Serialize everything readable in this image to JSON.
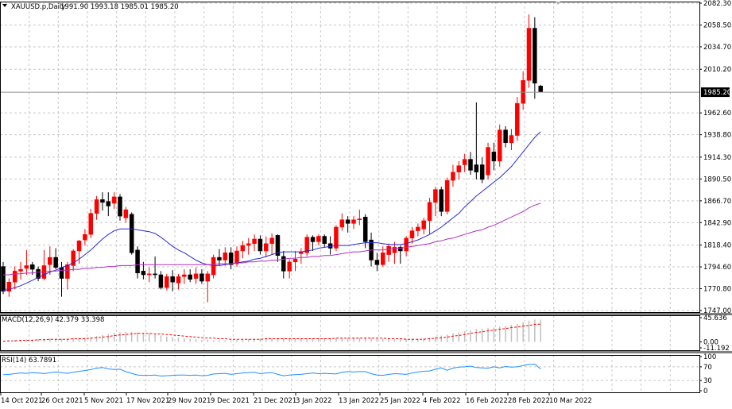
{
  "chart_data": {
    "type": "candlestick",
    "symbol_header": "XAUUSD.p,Daily",
    "ohlc_header": "1991.90 1993.18 1985.01 1985.20",
    "main": {
      "ylim": [
        1747.0,
        2082.3
      ],
      "y_ticks": [
        "2082.30",
        "2058.50",
        "2034.70",
        "2010.20",
        "1962.60",
        "1938.80",
        "1914.30",
        "1890.50",
        "1866.70",
        "1842.90",
        "1818.40",
        "1794.60",
        "1770.80",
        "1747.00"
      ],
      "current_price": "1985.20",
      "candles": [
        {
          "o": 1795,
          "h": 1800,
          "l": 1765,
          "c": 1768
        },
        {
          "o": 1768,
          "h": 1782,
          "l": 1762,
          "c": 1778
        },
        {
          "o": 1778,
          "h": 1795,
          "l": 1770,
          "c": 1790
        },
        {
          "o": 1790,
          "h": 1800,
          "l": 1781,
          "c": 1792
        },
        {
          "o": 1793,
          "h": 1813,
          "l": 1786,
          "c": 1796
        },
        {
          "o": 1797,
          "h": 1800,
          "l": 1786,
          "c": 1792
        },
        {
          "o": 1792,
          "h": 1795,
          "l": 1779,
          "c": 1782
        },
        {
          "o": 1782,
          "h": 1813,
          "l": 1780,
          "c": 1796
        },
        {
          "o": 1797,
          "h": 1817,
          "l": 1786,
          "c": 1805
        },
        {
          "o": 1805,
          "h": 1815,
          "l": 1792,
          "c": 1794
        },
        {
          "o": 1794,
          "h": 1800,
          "l": 1762,
          "c": 1782
        },
        {
          "o": 1782,
          "h": 1800,
          "l": 1770,
          "c": 1797
        },
        {
          "o": 1796,
          "h": 1814,
          "l": 1790,
          "c": 1812
        },
        {
          "o": 1812,
          "h": 1824,
          "l": 1798,
          "c": 1823
        },
        {
          "o": 1824,
          "h": 1836,
          "l": 1818,
          "c": 1830
        },
        {
          "o": 1830,
          "h": 1858,
          "l": 1826,
          "c": 1853
        },
        {
          "o": 1853,
          "h": 1872,
          "l": 1846,
          "c": 1868
        },
        {
          "o": 1868,
          "h": 1876,
          "l": 1856,
          "c": 1865
        },
        {
          "o": 1866,
          "h": 1876,
          "l": 1850,
          "c": 1861
        },
        {
          "o": 1864,
          "h": 1876,
          "l": 1858,
          "c": 1871
        },
        {
          "o": 1871,
          "h": 1874,
          "l": 1845,
          "c": 1850
        },
        {
          "o": 1848,
          "h": 1860,
          "l": 1843,
          "c": 1857
        },
        {
          "o": 1852,
          "h": 1854,
          "l": 1808,
          "c": 1810
        },
        {
          "o": 1813,
          "h": 1817,
          "l": 1782,
          "c": 1788
        },
        {
          "o": 1790,
          "h": 1800,
          "l": 1781,
          "c": 1786
        },
        {
          "o": 1786,
          "h": 1794,
          "l": 1778,
          "c": 1787
        },
        {
          "o": 1787,
          "h": 1806,
          "l": 1782,
          "c": 1786
        },
        {
          "o": 1786,
          "h": 1790,
          "l": 1770,
          "c": 1772
        },
        {
          "o": 1772,
          "h": 1787,
          "l": 1769,
          "c": 1784
        },
        {
          "o": 1784,
          "h": 1791,
          "l": 1768,
          "c": 1778
        },
        {
          "o": 1777,
          "h": 1787,
          "l": 1770,
          "c": 1784
        },
        {
          "o": 1784,
          "h": 1792,
          "l": 1776,
          "c": 1786
        },
        {
          "o": 1786,
          "h": 1792,
          "l": 1778,
          "c": 1781
        },
        {
          "o": 1782,
          "h": 1794,
          "l": 1776,
          "c": 1787
        },
        {
          "o": 1787,
          "h": 1792,
          "l": 1776,
          "c": 1779
        },
        {
          "o": 1779,
          "h": 1790,
          "l": 1756,
          "c": 1787
        },
        {
          "o": 1786,
          "h": 1808,
          "l": 1782,
          "c": 1805
        },
        {
          "o": 1805,
          "h": 1814,
          "l": 1796,
          "c": 1802
        },
        {
          "o": 1802,
          "h": 1816,
          "l": 1796,
          "c": 1810
        },
        {
          "o": 1810,
          "h": 1816,
          "l": 1792,
          "c": 1797
        },
        {
          "o": 1798,
          "h": 1817,
          "l": 1795,
          "c": 1812
        },
        {
          "o": 1812,
          "h": 1823,
          "l": 1804,
          "c": 1818
        },
        {
          "o": 1818,
          "h": 1826,
          "l": 1808,
          "c": 1820
        },
        {
          "o": 1820,
          "h": 1830,
          "l": 1812,
          "c": 1825
        },
        {
          "o": 1825,
          "h": 1829,
          "l": 1808,
          "c": 1812
        },
        {
          "o": 1812,
          "h": 1828,
          "l": 1805,
          "c": 1820
        },
        {
          "o": 1820,
          "h": 1831,
          "l": 1808,
          "c": 1826
        },
        {
          "o": 1829,
          "h": 1830,
          "l": 1800,
          "c": 1807
        },
        {
          "o": 1806,
          "h": 1812,
          "l": 1782,
          "c": 1790
        },
        {
          "o": 1790,
          "h": 1803,
          "l": 1782,
          "c": 1800
        },
        {
          "o": 1800,
          "h": 1812,
          "l": 1790,
          "c": 1803
        },
        {
          "o": 1809,
          "h": 1815,
          "l": 1798,
          "c": 1811
        },
        {
          "o": 1810,
          "h": 1830,
          "l": 1806,
          "c": 1827
        },
        {
          "o": 1827,
          "h": 1829,
          "l": 1812,
          "c": 1822
        },
        {
          "o": 1822,
          "h": 1830,
          "l": 1818,
          "c": 1828
        },
        {
          "o": 1828,
          "h": 1830,
          "l": 1816,
          "c": 1820
        },
        {
          "o": 1820,
          "h": 1828,
          "l": 1808,
          "c": 1815
        },
        {
          "o": 1815,
          "h": 1840,
          "l": 1812,
          "c": 1838
        },
        {
          "o": 1838,
          "h": 1853,
          "l": 1834,
          "c": 1846
        },
        {
          "o": 1846,
          "h": 1850,
          "l": 1832,
          "c": 1842
        },
        {
          "o": 1842,
          "h": 1850,
          "l": 1836,
          "c": 1846
        },
        {
          "o": 1846,
          "h": 1857,
          "l": 1840,
          "c": 1847
        },
        {
          "o": 1849,
          "h": 1852,
          "l": 1815,
          "c": 1822
        },
        {
          "o": 1824,
          "h": 1832,
          "l": 1795,
          "c": 1802
        },
        {
          "o": 1802,
          "h": 1810,
          "l": 1790,
          "c": 1797
        },
        {
          "o": 1797,
          "h": 1817,
          "l": 1795,
          "c": 1810
        },
        {
          "o": 1808,
          "h": 1820,
          "l": 1800,
          "c": 1817
        },
        {
          "o": 1810,
          "h": 1822,
          "l": 1798,
          "c": 1816
        },
        {
          "o": 1816,
          "h": 1818,
          "l": 1798,
          "c": 1812
        },
        {
          "o": 1812,
          "h": 1828,
          "l": 1806,
          "c": 1826
        },
        {
          "o": 1826,
          "h": 1838,
          "l": 1820,
          "c": 1834
        },
        {
          "o": 1834,
          "h": 1842,
          "l": 1828,
          "c": 1838
        },
        {
          "o": 1836,
          "h": 1848,
          "l": 1830,
          "c": 1845
        },
        {
          "o": 1845,
          "h": 1870,
          "l": 1830,
          "c": 1865
        },
        {
          "o": 1865,
          "h": 1882,
          "l": 1850,
          "c": 1879
        },
        {
          "o": 1879,
          "h": 1882,
          "l": 1850,
          "c": 1855
        },
        {
          "o": 1855,
          "h": 1892,
          "l": 1852,
          "c": 1889
        },
        {
          "o": 1889,
          "h": 1906,
          "l": 1882,
          "c": 1898
        },
        {
          "o": 1898,
          "h": 1910,
          "l": 1890,
          "c": 1905
        },
        {
          "o": 1906,
          "h": 1918,
          "l": 1898,
          "c": 1912
        },
        {
          "o": 1912,
          "h": 1920,
          "l": 1895,
          "c": 1900
        },
        {
          "o": 1906,
          "h": 1974,
          "l": 1890,
          "c": 1898
        },
        {
          "o": 1906,
          "h": 1914,
          "l": 1886,
          "c": 1890
        },
        {
          "o": 1895,
          "h": 1930,
          "l": 1890,
          "c": 1925
        },
        {
          "o": 1920,
          "h": 1930,
          "l": 1900,
          "c": 1910
        },
        {
          "o": 1910,
          "h": 1950,
          "l": 1904,
          "c": 1944
        },
        {
          "o": 1944,
          "h": 1948,
          "l": 1925,
          "c": 1930
        },
        {
          "o": 1930,
          "h": 1945,
          "l": 1922,
          "c": 1938
        },
        {
          "o": 1938,
          "h": 1980,
          "l": 1932,
          "c": 1973
        },
        {
          "o": 1973,
          "h": 2008,
          "l": 1966,
          "c": 1998
        },
        {
          "o": 1998,
          "h": 2070,
          "l": 1990,
          "c": 2055
        },
        {
          "o": 2055,
          "h": 2067,
          "l": 1978,
          "c": 1995
        },
        {
          "o": 1991.9,
          "h": 1993.18,
          "l": 1985.01,
          "c": 1985.2
        }
      ],
      "ma_fast": [
        1769,
        1770,
        1772,
        1774,
        1777,
        1780,
        1783,
        1786,
        1789,
        1791,
        1794,
        1796,
        1799,
        1803,
        1808,
        1813,
        1819,
        1825,
        1830,
        1834,
        1836,
        1836,
        1836,
        1835,
        1834,
        1833,
        1831,
        1827,
        1822,
        1817,
        1813,
        1810,
        1806,
        1802,
        1799,
        1797,
        1796,
        1796,
        1797,
        1798,
        1799,
        1800,
        1801,
        1803,
        1804,
        1806,
        1808,
        1810,
        1811,
        1811,
        1811,
        1811,
        1812,
        1813,
        1815,
        1816,
        1817,
        1818,
        1818,
        1818,
        1819,
        1820,
        1821,
        1821,
        1821,
        1820,
        1819,
        1819,
        1819,
        1820,
        1822,
        1824,
        1827,
        1830,
        1834,
        1838,
        1843,
        1848,
        1853,
        1860,
        1866,
        1872,
        1877,
        1882,
        1887,
        1892,
        1898,
        1904,
        1912,
        1920,
        1928,
        1936,
        1942
      ],
      "ma_slow": [
        1786,
        1786,
        1787,
        1787,
        1788,
        1788,
        1789,
        1789,
        1790,
        1790,
        1791,
        1791,
        1792,
        1792,
        1793,
        1793,
        1794,
        1794,
        1795,
        1795,
        1796,
        1796,
        1796,
        1797,
        1797,
        1797,
        1797,
        1797,
        1797,
        1797,
        1797,
        1797,
        1797,
        1797,
        1797,
        1797,
        1797,
        1798,
        1798,
        1798,
        1799,
        1799,
        1800,
        1800,
        1801,
        1801,
        1802,
        1802,
        1803,
        1804,
        1804,
        1805,
        1805,
        1806,
        1806,
        1807,
        1807,
        1808,
        1809,
        1810,
        1811,
        1811,
        1812,
        1813,
        1813,
        1813,
        1814,
        1815,
        1815,
        1816,
        1817,
        1818,
        1819,
        1820,
        1822,
        1823,
        1825,
        1826,
        1828,
        1830,
        1832,
        1834,
        1835,
        1838,
        1840,
        1843,
        1846,
        1849,
        1852,
        1855,
        1859,
        1862,
        1864
      ]
    },
    "macd": {
      "label": "MACD(12,26,9) 42.379 33.398",
      "y_ticks": [
        "45.636",
        "0.00",
        "-11.192"
      ],
      "ylim": [
        -11.192,
        45.636
      ],
      "histogram": [
        2,
        3,
        4,
        4,
        5,
        5,
        5,
        6,
        6,
        6,
        6,
        6,
        7,
        7,
        8,
        9,
        11,
        13,
        15,
        17,
        18,
        19,
        19,
        18,
        17,
        16,
        14,
        12,
        10,
        9,
        8,
        7,
        6,
        5,
        4,
        4,
        3,
        3,
        3,
        3,
        4,
        4,
        5,
        5,
        6,
        6,
        6,
        7,
        7,
        6,
        6,
        6,
        6,
        6,
        7,
        7,
        7,
        7,
        8,
        8,
        8,
        8,
        8,
        8,
        7,
        6,
        5,
        5,
        5,
        5,
        6,
        6,
        7,
        8,
        10,
        12,
        14,
        16,
        18,
        20,
        22,
        24,
        25,
        26,
        27,
        29,
        30,
        32,
        34,
        37,
        40,
        42,
        42
      ],
      "signal": [
        1,
        2,
        2,
        3,
        3,
        3,
        4,
        4,
        5,
        5,
        5,
        5,
        6,
        6,
        6,
        7,
        8,
        9,
        10,
        12,
        13,
        14,
        15,
        16,
        16,
        16,
        15,
        15,
        14,
        13,
        12,
        11,
        10,
        9,
        8,
        7,
        7,
        6,
        6,
        5,
        5,
        5,
        5,
        5,
        5,
        6,
        6,
        6,
        6,
        6,
        6,
        6,
        6,
        6,
        6,
        6,
        6,
        7,
        7,
        7,
        7,
        7,
        7,
        7,
        7,
        7,
        6,
        6,
        6,
        5,
        5,
        5,
        5,
        6,
        7,
        8,
        9,
        11,
        12,
        14,
        16,
        18,
        19,
        21,
        22,
        24,
        25,
        27,
        28,
        30,
        31,
        33,
        33.4
      ]
    },
    "rsi": {
      "label": "RSI(14) 63.7891",
      "y_ticks": [
        "100",
        "70",
        "30",
        "0"
      ],
      "ylim": [
        0,
        100
      ],
      "levels": [
        70,
        30
      ],
      "values": [
        47,
        48,
        50,
        52,
        51,
        53,
        52,
        50,
        53,
        55,
        53,
        51,
        54,
        57,
        59,
        62,
        66,
        68,
        64,
        62,
        63,
        56,
        51,
        46,
        45,
        45,
        46,
        43,
        44,
        45,
        46,
        46,
        45,
        46,
        44,
        45,
        49,
        50,
        51,
        48,
        50,
        52,
        53,
        54,
        50,
        52,
        53,
        48,
        44,
        46,
        47,
        48,
        50,
        52,
        50,
        51,
        50,
        49,
        54,
        56,
        55,
        56,
        56,
        50,
        46,
        45,
        48,
        50,
        49,
        48,
        52,
        55,
        57,
        58,
        63,
        67,
        60,
        66,
        69,
        70,
        72,
        68,
        67,
        66,
        70,
        67,
        71,
        69,
        70,
        74,
        77,
        78,
        63.8
      ]
    },
    "x_labels": [
      "14 Oct 2021",
      "26 Oct 2021",
      "5 Nov 2021",
      "17 Nov 2021",
      "29 Nov 2021",
      "9 Dec 2021",
      "21 Dec 2021",
      "3 Jan 2022",
      "13 Jan 2022",
      "25 Jan 2022",
      "4 Feb 2022",
      "16 Feb 2022",
      "28 Feb 2022",
      "10 Mar 2022"
    ],
    "colors": {
      "bull": "#ff0000",
      "bear": "#000000",
      "ma_fast": "#2b2bd4",
      "ma_slow": "#b030c0",
      "grid": "#c8c8c8",
      "macd_hist": "#c0c0c0",
      "macd_signal": "#ff0000",
      "rsi_line": "#1e90ff",
      "price_tag_bg": "#000000",
      "price_tag_text": "#ffffff"
    }
  }
}
